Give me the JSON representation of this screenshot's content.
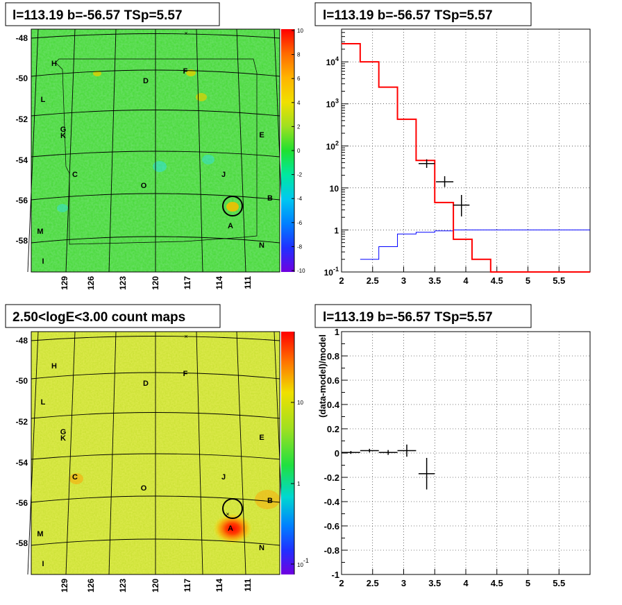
{
  "panels": {
    "top_left_title": "l=113.19 b=-56.57 TSp=5.57",
    "top_right_title": "l=113.19 b=-56.57 TSp=5.57",
    "bottom_left_title": "2.50<logE<3.00 count maps",
    "bottom_right_title": "l=113.19 b=-56.57 TSp=5.57"
  },
  "sky_maps": {
    "y_ticks": [
      "-48",
      "-50",
      "-52",
      "-54",
      "-56",
      "-58"
    ],
    "x_ticks": [
      "129",
      "126",
      "123",
      "120",
      "117",
      "114",
      "111"
    ],
    "sources": [
      {
        "label": "H"
      },
      {
        "label": "F"
      },
      {
        "label": "D"
      },
      {
        "label": "L"
      },
      {
        "label": "G"
      },
      {
        "label": "K"
      },
      {
        "label": "E"
      },
      {
        "label": "C"
      },
      {
        "label": "J"
      },
      {
        "label": "O"
      },
      {
        "label": "B"
      },
      {
        "label": "A"
      },
      {
        "label": "M"
      },
      {
        "label": "N"
      },
      {
        "label": "I"
      }
    ],
    "top_colorbar_ticks": [
      "10",
      "8",
      "6",
      "4",
      "2",
      "0",
      "-2",
      "-4",
      "-6",
      "-8",
      "-10"
    ],
    "bottom_colorbar_ticks": [
      "10",
      "1"
    ],
    "bottom_colorbar_tick_min": {
      "base": "10",
      "exp": "-1"
    }
  },
  "chart_data": [
    {
      "type": "line",
      "panel": "top-right",
      "y_scale": "log",
      "xlim": [
        2,
        6
      ],
      "ylim": [
        0.1,
        60000
      ],
      "x_ticks": [
        "2",
        "2.5",
        "3",
        "3.5",
        "4",
        "4.5",
        "5",
        "5.5"
      ],
      "y_ticks": [
        {
          "base": "10",
          "exp": "4"
        },
        {
          "base": "10",
          "exp": "3"
        },
        {
          "base": "10",
          "exp": "2"
        },
        {
          "base": "10",
          "exp": ""
        },
        {
          "base": "1",
          "exp": ""
        },
        {
          "base": "10",
          "exp": "-1"
        }
      ],
      "grid": true,
      "model_red": {
        "color": "#ff0000",
        "edges": [
          2,
          2.3,
          2.6,
          2.9,
          3.2,
          3.5,
          3.8,
          4.1,
          4.4,
          6
        ],
        "values": [
          27000,
          10000,
          2500,
          430,
          45,
          4.5,
          0.6,
          0.2,
          0.1
        ]
      },
      "model_blue": {
        "color": "#0000ff",
        "edges": [
          2.3,
          2.6,
          2.9,
          3.2,
          3.5,
          3.8,
          6
        ],
        "values": [
          0.2,
          0.4,
          0.8,
          0.88,
          0.95,
          1.0
        ]
      },
      "data_points": [
        {
          "x": 3.37,
          "xerr": 0.13,
          "y": 38,
          "ylo": 30,
          "yhi": 48
        },
        {
          "x": 3.66,
          "xerr": 0.14,
          "y": 14,
          "ylo": 10.5,
          "yhi": 19
        },
        {
          "x": 3.93,
          "xerr": 0.13,
          "y": 3.9,
          "ylo": 2.1,
          "yhi": 6.8
        }
      ]
    },
    {
      "type": "scatter",
      "panel": "bottom-right",
      "xlim": [
        2,
        6
      ],
      "ylim": [
        -1,
        1
      ],
      "ylabel": "(data-model)/model",
      "x_ticks": [
        "2",
        "2.5",
        "3",
        "3.5",
        "4",
        "4.5",
        "5",
        "5.5"
      ],
      "y_ticks": [
        "1",
        "0.8",
        "0.6",
        "0.4",
        "0.2",
        "0",
        "-0.2",
        "-0.4",
        "-0.6",
        "-0.8",
        "-1"
      ],
      "grid": true,
      "points": [
        {
          "x": 2.15,
          "xerr": 0.15,
          "y": 0.005,
          "yerr": 0.012
        },
        {
          "x": 2.45,
          "xerr": 0.15,
          "y": 0.02,
          "yerr": 0.015
        },
        {
          "x": 2.75,
          "xerr": 0.15,
          "y": 0.005,
          "yerr": 0.02
        },
        {
          "x": 3.05,
          "xerr": 0.15,
          "y": 0.02,
          "yerr": 0.05
        },
        {
          "x": 3.37,
          "xerr": 0.13,
          "y": -0.17,
          "yerr": 0.13
        }
      ]
    }
  ]
}
